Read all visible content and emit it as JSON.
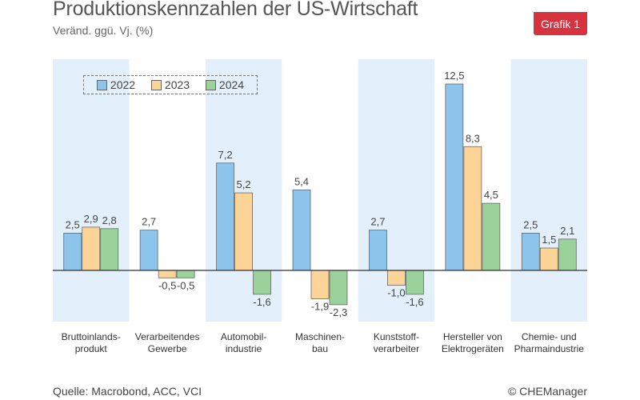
{
  "header": {
    "title": "Produktionskennzahlen der US-Wirtschaft",
    "subtitle": "Veränd. ggü. Vj. (%)",
    "badge": "Grafik 1"
  },
  "footer": {
    "source": "Quelle: Macrobond, ACC, VCI",
    "copyright": "© CHEManager"
  },
  "colors": {
    "band": "#e3f0fb",
    "series": [
      "#8cc4ec",
      "#fcd498",
      "#9bd29b"
    ],
    "stroke": "#666666"
  },
  "chart_data": {
    "type": "bar",
    "title": "Produktionskennzahlen der US-Wirtschaft",
    "subtitle": "Veränd. ggü. Vj. (%)",
    "categories": [
      [
        "Bruttoinlands-",
        "produkt"
      ],
      [
        "Verarbeitendes",
        "Gewerbe"
      ],
      [
        "Automobil-",
        "industrie"
      ],
      [
        "Maschinen-",
        "bau"
      ],
      [
        "Kunststoff-",
        "verarbeiter"
      ],
      [
        "Hersteller von",
        "Elektrogeräten"
      ],
      [
        "Chemie- und",
        "Pharmaindustrie"
      ]
    ],
    "series": [
      {
        "name": "2022",
        "values": [
          2.5,
          2.7,
          7.2,
          5.4,
          2.7,
          12.5,
          2.5
        ],
        "labels": [
          "2,5",
          "2,7",
          "7,2",
          "5,4",
          "2,7",
          "12,5",
          "2,5"
        ]
      },
      {
        "name": "2023",
        "values": [
          2.9,
          -0.5,
          5.2,
          -1.9,
          -1.0,
          8.3,
          1.5
        ],
        "labels": [
          "2,9",
          "-0,5",
          "5,2",
          "-1,9",
          "-1,0",
          "8,3",
          "1,5"
        ]
      },
      {
        "name": "2024",
        "values": [
          2.8,
          -0.5,
          -1.6,
          -2.3,
          -1.6,
          4.5,
          2.1
        ],
        "labels": [
          "2,8",
          "-0,5",
          "-1,6",
          "-2,3",
          "-1,6",
          "4,5",
          "2,1"
        ]
      }
    ],
    "xlabel": "",
    "ylabel": "",
    "ylim": [
      -3.0,
      13.5
    ],
    "legend": "top-left",
    "grid": false
  }
}
